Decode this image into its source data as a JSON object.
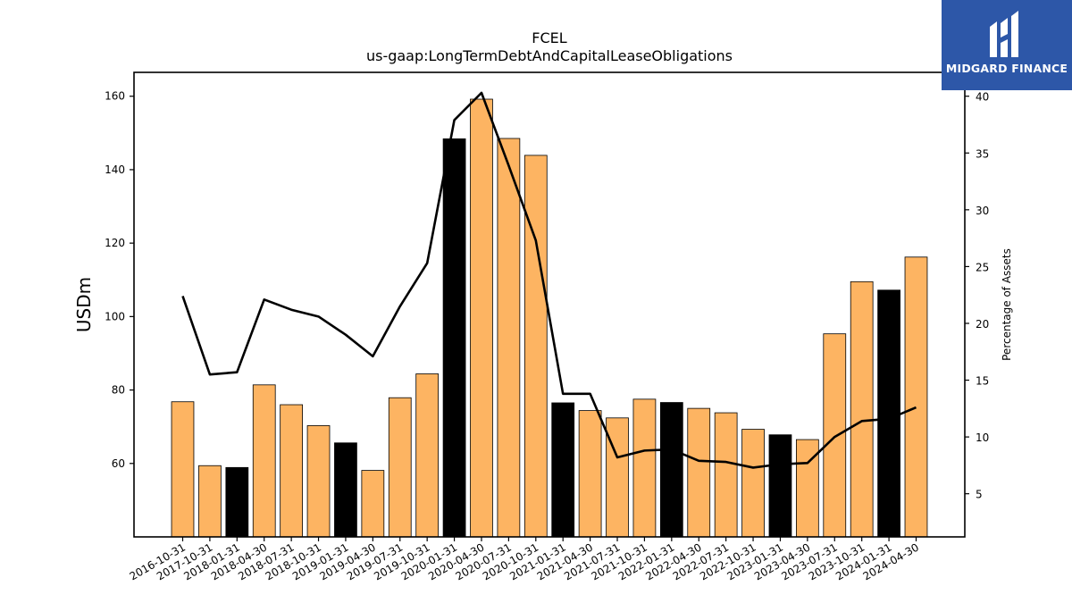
{
  "header": {
    "title": "FCEL",
    "subtitle": "us-gaap:LongTermDebtAndCapitalLeaseObligations"
  },
  "logo": {
    "text": "MIDGARD FINANCE",
    "background": "#2d57a8"
  },
  "chart_data": {
    "type": "bar",
    "title": "FCEL",
    "subtitle": "us-gaap:LongTermDebtAndCapitalLeaseObligations",
    "ylabel": "USDm",
    "y2label": "Percentage of Assets",
    "ylim": [
      40,
      166.5
    ],
    "yticks": [
      60,
      80,
      100,
      120,
      140,
      160
    ],
    "y2lim": [
      1.2,
      42.1
    ],
    "y2ticks": [
      5,
      10,
      15,
      20,
      25,
      30,
      35,
      40
    ],
    "grid": false,
    "colors": {
      "orange": "#fdb462",
      "black": "#000000",
      "line": "#000000"
    },
    "categories": [
      "2016-10-31",
      "2017-10-31",
      "2018-01-31",
      "2018-04-30",
      "2018-07-31",
      "2018-10-31",
      "2019-01-31",
      "2019-04-30",
      "2019-07-31",
      "2019-10-31",
      "2020-01-31",
      "2020-04-30",
      "2020-07-31",
      "2020-10-31",
      "2021-01-31",
      "2021-04-30",
      "2021-07-31",
      "2021-10-31",
      "2022-01-31",
      "2022-04-30",
      "2022-07-31",
      "2022-10-31",
      "2023-01-31",
      "2023-04-30",
      "2023-07-31",
      "2023-10-31",
      "2024-01-31",
      "2024-04-30"
    ],
    "series": [
      {
        "type": "bar",
        "values": [
          76.8,
          59.4,
          58.9,
          81.4,
          76.0,
          70.3,
          65.6,
          58.1,
          77.9,
          84.4,
          148.4,
          159.2,
          148.5,
          143.9,
          76.5,
          74.4,
          72.4,
          77.5,
          76.6,
          75.0,
          73.8,
          69.3,
          67.8,
          66.5,
          95.3,
          109.5,
          107.2,
          116.2
        ],
        "bar_colors": [
          "orange",
          "orange",
          "black",
          "orange",
          "orange",
          "orange",
          "black",
          "orange",
          "orange",
          "orange",
          "black",
          "orange",
          "orange",
          "orange",
          "black",
          "orange",
          "orange",
          "orange",
          "black",
          "orange",
          "orange",
          "orange",
          "black",
          "orange",
          "orange",
          "orange",
          "black",
          "orange"
        ]
      },
      {
        "type": "line",
        "axis": "right",
        "values": [
          22.4,
          15.5,
          15.7,
          22.1,
          21.2,
          20.6,
          19.0,
          17.1,
          21.5,
          25.3,
          37.9,
          40.3,
          33.9,
          27.3,
          13.8,
          13.8,
          8.2,
          8.8,
          8.9,
          7.9,
          7.8,
          7.3,
          7.6,
          7.7,
          10.0,
          11.4,
          11.6,
          12.6
        ]
      }
    ]
  }
}
